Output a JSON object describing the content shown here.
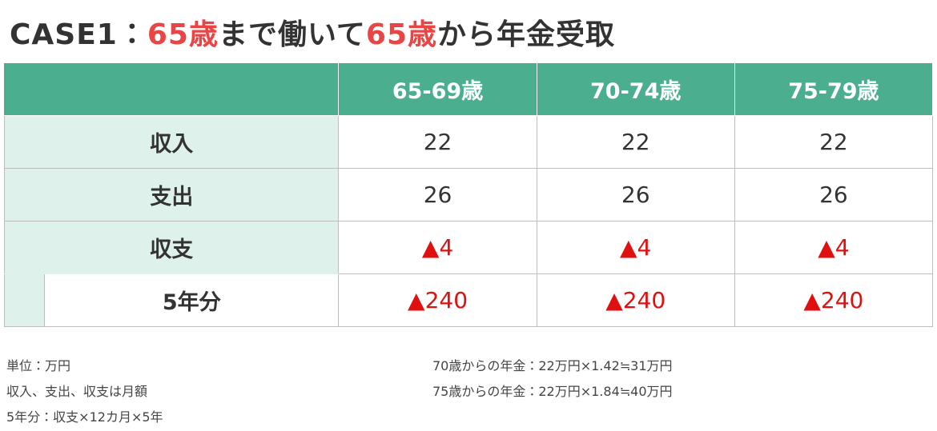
{
  "title": {
    "parts": [
      "CASE1：",
      "65歳",
      "まで働いて",
      "65歳",
      "から年金受取"
    ]
  },
  "table": {
    "columns": [
      "65-69歳",
      "70-74歳",
      "75-79歳"
    ],
    "rows": [
      {
        "label": "収入",
        "cells": [
          "22",
          "22",
          "22"
        ]
      },
      {
        "label": "支出",
        "cells": [
          "26",
          "26",
          "26"
        ]
      },
      {
        "label": "収支",
        "cells": [
          "▲4",
          "▲4",
          "▲4"
        ]
      },
      {
        "label": "5年分",
        "cells": [
          "▲240",
          "▲240",
          "▲240"
        ]
      }
    ]
  },
  "notes": {
    "left": [
      "単位：万円",
      "収入、支出、収支は月額",
      "5年分：収支×12カ月×5年"
    ],
    "right": [
      "70歳からの年金：22万円×1.42≒31万円",
      "75歳からの年金：22万円×1.84≒40万円"
    ]
  }
}
